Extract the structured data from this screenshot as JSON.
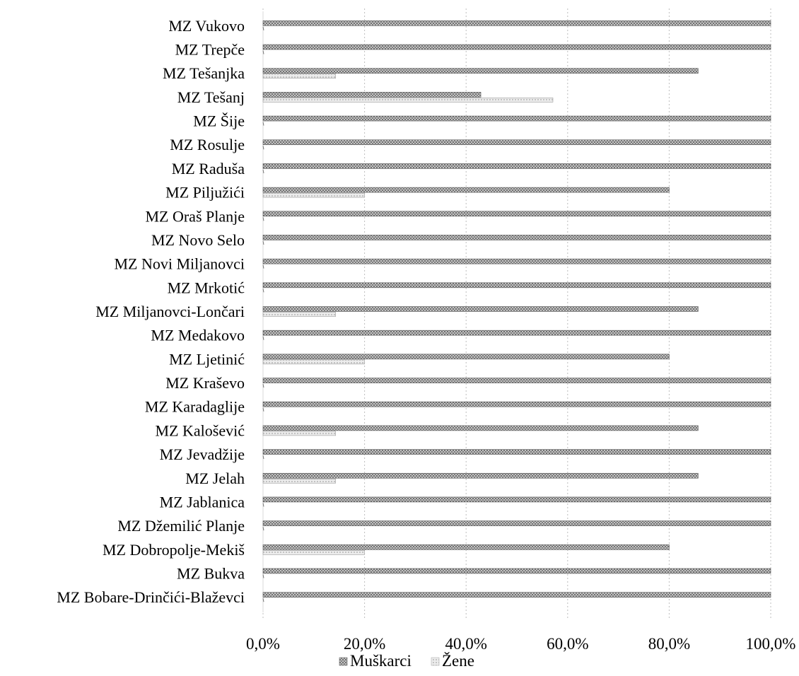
{
  "chart_data": {
    "type": "bar",
    "orientation": "horizontal",
    "categories": [
      "MZ Vukovo",
      "MZ Trepče",
      "MZ Tešanjka",
      "MZ Tešanj",
      "MZ Šije",
      "MZ Rosulje",
      "MZ Raduša",
      "MZ Piljužići",
      "MZ Oraš Planje",
      "MZ Novo Selo",
      "MZ Novi Miljanovci",
      "MZ Mrkotić",
      "MZ Miljanovci-Lončari",
      "MZ Medakovo",
      "MZ Ljetinić",
      "MZ Kraševo",
      "MZ Karadaglije",
      "MZ Kalošević",
      "MZ Jevadžije",
      "MZ Jelah",
      "MZ Jablanica",
      "MZ Džemilić Planje",
      "MZ Dobropolje-Mekiš",
      "MZ Bukva",
      "MZ Bobare-Drinčići-Blaževci"
    ],
    "series": [
      {
        "name": "Muškarci",
        "color": "#8c8c8c",
        "values": [
          100,
          100,
          85.7,
          42.9,
          100,
          100,
          100,
          80,
          100,
          100,
          100,
          100,
          85.7,
          100,
          80,
          100,
          100,
          85.7,
          100,
          85.7,
          100,
          100,
          80,
          100,
          100
        ]
      },
      {
        "name": "Žene",
        "color": "#d6d6d6",
        "values": [
          0,
          0,
          14.3,
          57.1,
          0,
          0,
          0,
          20,
          0,
          0,
          0,
          0,
          14.3,
          0,
          20,
          0,
          0,
          14.3,
          0,
          14.3,
          0,
          0,
          20,
          0,
          0
        ]
      }
    ],
    "xlim": [
      0,
      100
    ],
    "xticks": [
      "0,0%",
      "20,0%",
      "40,0%",
      "60,0%",
      "80,0%",
      "100,0%"
    ],
    "grid": "vertical-dotted",
    "legend": "bottom",
    "title": "",
    "xlabel": "",
    "ylabel": ""
  }
}
